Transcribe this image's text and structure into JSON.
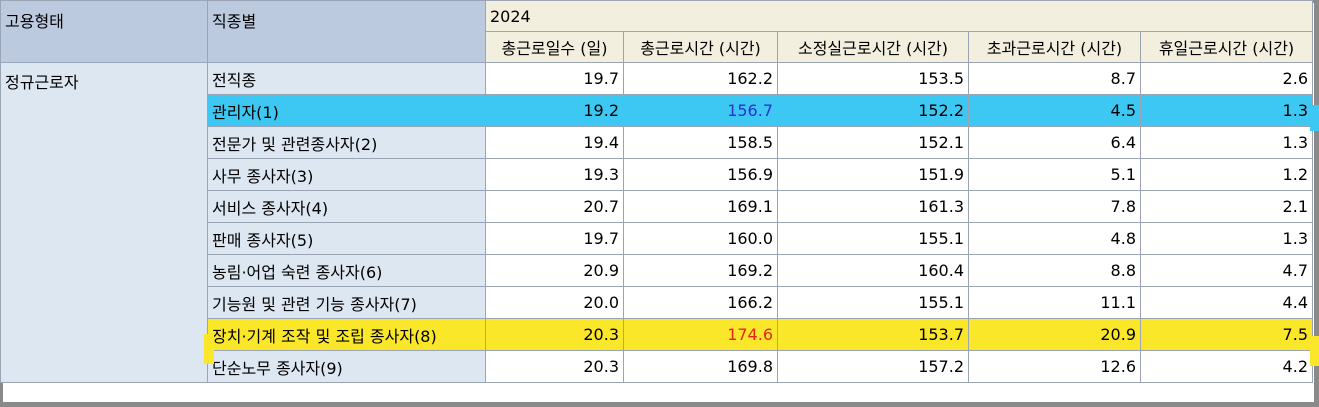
{
  "header": {
    "col_employment": "고용형태",
    "col_occupation": "직종별",
    "year": "2024",
    "measures": [
      "총근로일수 (일)",
      "총근로시간 (시간)",
      "소정실근로시간 (시간)",
      "초과근로시간 (시간)",
      "휴일근로시간 (시간)"
    ]
  },
  "employment_type": "정규근로자",
  "rows": [
    {
      "occupation": "전직종",
      "values": [
        "19.7",
        "162.2",
        "153.5",
        "8.7",
        "2.6"
      ]
    },
    {
      "occupation": "관리자(1)",
      "values": [
        "19.2",
        "156.7",
        "152.2",
        "4.5",
        "1.3"
      ],
      "highlight": "#3cc8f2"
    },
    {
      "occupation": "전문가 및 관련종사자(2)",
      "values": [
        "19.4",
        "158.5",
        "152.1",
        "6.4",
        "1.3"
      ]
    },
    {
      "occupation": "사무 종사자(3)",
      "values": [
        "19.3",
        "156.9",
        "151.9",
        "5.1",
        "1.2"
      ]
    },
    {
      "occupation": "서비스 종사자(4)",
      "values": [
        "20.7",
        "169.1",
        "161.3",
        "7.8",
        "2.1"
      ]
    },
    {
      "occupation": "판매 종사자(5)",
      "values": [
        "19.7",
        "160.0",
        "155.1",
        "4.8",
        "1.3"
      ]
    },
    {
      "occupation": "농림·어업 숙련 종사자(6)",
      "values": [
        "20.9",
        "169.2",
        "160.4",
        "8.8",
        "4.7"
      ]
    },
    {
      "occupation": "기능원 및 관련 기능 종사자(7)",
      "values": [
        "20.0",
        "166.2",
        "155.1",
        "11.1",
        "4.4"
      ]
    },
    {
      "occupation": "장치·기계 조작 및 조립 종사자(8)",
      "values": [
        "20.3",
        "174.6",
        "153.7",
        "20.9",
        "7.5"
      ],
      "highlight": "#fbe72a"
    },
    {
      "occupation": "단순노무 종사자(9)",
      "values": [
        "20.3",
        "169.8",
        "157.2",
        "12.6",
        "4.2"
      ]
    }
  ],
  "colors": {
    "blue_highlight": "#3cc8f2",
    "yellow_highlight": "#fbe72a",
    "blue_text": "#2a2fd6",
    "red_text": "#e8231e",
    "header_dim_bg": "#bccadf",
    "header_measure_bg": "#f2efde",
    "dim_bg": "#dde7f2"
  }
}
